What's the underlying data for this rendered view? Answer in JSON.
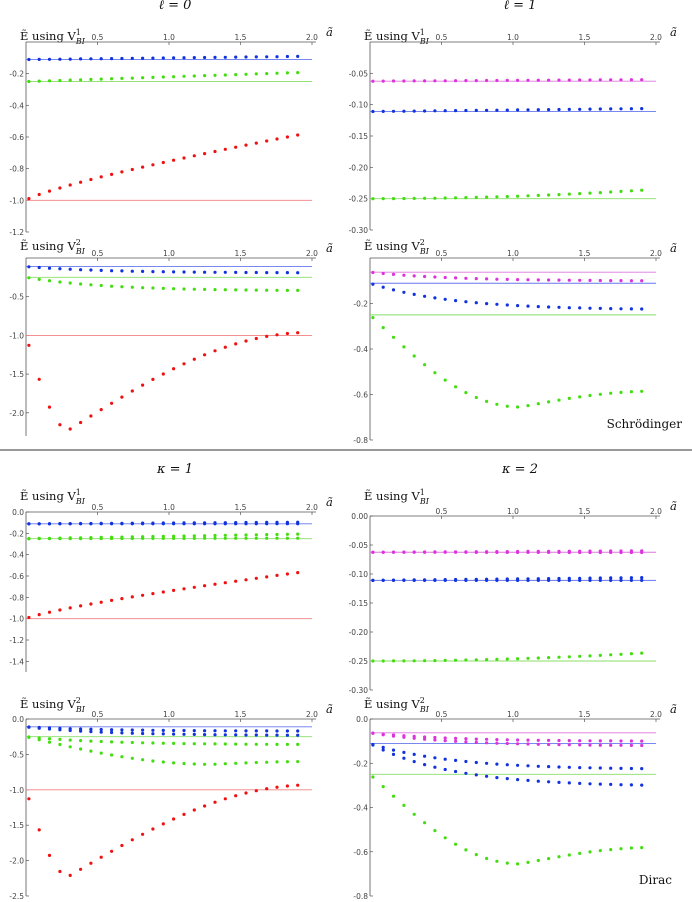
{
  "section_titles": {
    "left_top": "ℓ = 0",
    "right_top": "ℓ = 1",
    "left_bottom": "κ = 1",
    "right_bottom": "κ = 2"
  },
  "tags": {
    "schrodinger": "Schrödinger",
    "dirac": "Dirac"
  },
  "axis_x_label": "ã",
  "colors": {
    "red": "#ee1111",
    "green": "#44dd11",
    "blue": "#1133dd",
    "magenta": "#dd33dd",
    "red_line": "#f08080",
    "green_line": "#88dd66",
    "blue_line": "#6677ee",
    "magenta_line": "#dd77dd"
  },
  "chart_data": [
    {
      "type": "scatter",
      "title": "Ẽ using V¹_BI",
      "xlabel": "ã",
      "ylabel": "",
      "xlim": [
        0,
        2
      ],
      "ylim": [
        -1.2,
        0
      ],
      "xticks": [
        "0.5",
        "1.0",
        "1.5",
        "2.0"
      ],
      "yticks": [
        "-0.2",
        "-0.4",
        "-0.6",
        "-0.8",
        "-1.0",
        "-1.2"
      ],
      "ref_lines": [
        {
          "color": "blue",
          "y": -0.111
        },
        {
          "color": "green",
          "y": -0.25
        },
        {
          "color": "red",
          "y": -1.0
        }
      ],
      "series": [
        {
          "color": "blue",
          "y0": -0.111,
          "y1": -0.09,
          "shape": "lin"
        },
        {
          "color": "green",
          "y0": -0.25,
          "y1": -0.19,
          "shape": "lin"
        },
        {
          "color": "red",
          "y0": -1.0,
          "y1": -0.57,
          "shape": "sqrt"
        }
      ]
    },
    {
      "type": "scatter",
      "title": "Ẽ using V¹_BI",
      "xlabel": "ã",
      "ylabel": "",
      "xlim": [
        0,
        2
      ],
      "ylim": [
        -0.3,
        0
      ],
      "xticks": [
        "0.5",
        "1.0",
        "1.5",
        "2.0"
      ],
      "yticks": [
        "-0.05",
        "-0.10",
        "-0.15",
        "-0.20",
        "-0.25",
        "-0.30"
      ],
      "ref_lines": [
        {
          "color": "magenta",
          "y": -0.0625
        },
        {
          "color": "blue",
          "y": -0.111
        },
        {
          "color": "green",
          "y": -0.25
        }
      ],
      "series": [
        {
          "color": "magenta",
          "y0": -0.0625,
          "y1": -0.06,
          "shape": "lin"
        },
        {
          "color": "blue",
          "y0": -0.111,
          "y1": -0.106,
          "shape": "lin"
        },
        {
          "color": "green",
          "y0": -0.25,
          "y1": -0.235,
          "shape": "quad"
        }
      ]
    },
    {
      "type": "scatter",
      "title": "Ẽ using V²_BI",
      "xlabel": "ã",
      "ylabel": "",
      "xlim": [
        0,
        2
      ],
      "ylim": [
        -2.3,
        0
      ],
      "xticks": [
        "0.5",
        "1.0",
        "1.5",
        "2.0"
      ],
      "yticks": [
        "-0.5",
        "-1.0",
        "-1.5",
        "-2.0"
      ],
      "ref_lines": [
        {
          "color": "blue",
          "y": -0.111
        },
        {
          "color": "green",
          "y": -0.25
        },
        {
          "color": "red",
          "y": -1.0
        }
      ],
      "series": [
        {
          "color": "blue",
          "y0": -0.111,
          "y1": -0.19,
          "shape": "sat"
        },
        {
          "color": "green",
          "y0": -0.25,
          "y1": -0.42,
          "shape": "sat"
        },
        {
          "color": "red",
          "y0": -1.0,
          "y1": -0.96,
          "shape": "dip",
          "ymin": -2.22,
          "xmin": 0.3
        }
      ]
    },
    {
      "type": "scatter",
      "title": "Ẽ using V²_BI",
      "xlabel": "ã",
      "ylabel": "",
      "xlim": [
        0,
        2
      ],
      "ylim": [
        -0.8,
        0
      ],
      "xticks": [
        "0.5",
        "1.0",
        "1.5",
        "2.0"
      ],
      "yticks": [
        "-0.2",
        "-0.4",
        "-0.6",
        "-0.8"
      ],
      "ref_lines": [
        {
          "color": "magenta",
          "y": -0.0625
        },
        {
          "color": "blue",
          "y": -0.111
        },
        {
          "color": "green",
          "y": -0.25
        }
      ],
      "series": [
        {
          "color": "magenta",
          "y0": -0.0625,
          "y1": -0.1,
          "shape": "sat"
        },
        {
          "color": "blue",
          "y0": -0.111,
          "y1": -0.225,
          "shape": "sat"
        },
        {
          "color": "green",
          "y0": -0.25,
          "y1": -0.585,
          "shape": "dip",
          "ymin": -0.655,
          "xmin": 1.05
        }
      ]
    },
    {
      "type": "scatter",
      "title": "Ẽ using V¹_BI",
      "xlabel": "ã",
      "ylabel": "",
      "xlim": [
        0,
        2
      ],
      "ylim": [
        -1.5,
        0
      ],
      "xticks": [
        "0.5",
        "1.0",
        "1.5",
        "2.0"
      ],
      "yticks": [
        "0.0",
        "-0.2",
        "-0.4",
        "-0.6",
        "-0.8",
        "-1.0",
        "-1.2",
        "-1.4"
      ],
      "ref_lines": [
        {
          "color": "blue",
          "y": -0.111
        },
        {
          "color": "green",
          "y": -0.25
        },
        {
          "color": "red",
          "y": -1.0
        }
      ],
      "series": [
        {
          "color": "blue",
          "y0": -0.111,
          "y1": -0.095,
          "shape": "lin"
        },
        {
          "color": "blue",
          "y0": -0.111,
          "y1": -0.11,
          "shape": "lin"
        },
        {
          "color": "green",
          "y0": -0.25,
          "y1": -0.205,
          "shape": "lin"
        },
        {
          "color": "green",
          "y0": -0.25,
          "y1": -0.245,
          "shape": "lin"
        },
        {
          "color": "red",
          "y0": -1.0,
          "y1": -0.55,
          "shape": "sqrt"
        }
      ]
    },
    {
      "type": "scatter",
      "title": "Ẽ using V¹_BI",
      "xlabel": "ã",
      "ylabel": "",
      "xlim": [
        0,
        2
      ],
      "ylim": [
        -0.3,
        0
      ],
      "xticks": [
        "0.5",
        "1.0",
        "1.5",
        "2.0"
      ],
      "yticks": [
        "0.00",
        "-0.05",
        "-0.10",
        "-0.15",
        "-0.20",
        "-0.25",
        "-0.30"
      ],
      "ref_lines": [
        {
          "color": "magenta",
          "y": -0.0625
        },
        {
          "color": "blue",
          "y": -0.111
        },
        {
          "color": "green",
          "y": -0.25
        }
      ],
      "series": [
        {
          "color": "magenta",
          "y0": -0.0625,
          "y1": -0.06,
          "shape": "lin"
        },
        {
          "color": "magenta",
          "y0": -0.0625,
          "y1": -0.063,
          "shape": "lin"
        },
        {
          "color": "blue",
          "y0": -0.111,
          "y1": -0.106,
          "shape": "lin"
        },
        {
          "color": "blue",
          "y0": -0.111,
          "y1": -0.111,
          "shape": "lin"
        },
        {
          "color": "green",
          "y0": -0.25,
          "y1": -0.235,
          "shape": "quad"
        }
      ]
    },
    {
      "type": "scatter",
      "title": "Ẽ using V²_BI",
      "xlabel": "ã",
      "ylabel": "",
      "xlim": [
        0,
        2
      ],
      "ylim": [
        -2.5,
        0
      ],
      "xticks": [
        "0.5",
        "1.0",
        "1.5",
        "2.0"
      ],
      "yticks": [
        "0.0",
        "-0.5",
        "-1.0",
        "-1.5",
        "-2.0",
        "-2.5"
      ],
      "ref_lines": [
        {
          "color": "blue",
          "y": -0.111
        },
        {
          "color": "green",
          "y": -0.25
        },
        {
          "color": "red",
          "y": -1.0
        }
      ],
      "series": [
        {
          "color": "blue",
          "y0": -0.111,
          "y1": -0.17,
          "shape": "sat"
        },
        {
          "color": "blue",
          "y0": -0.111,
          "y1": -0.23,
          "shape": "sat"
        },
        {
          "color": "green",
          "y0": -0.25,
          "y1": -0.36,
          "shape": "sat"
        },
        {
          "color": "green",
          "y0": -0.25,
          "y1": -0.6,
          "shape": "dip",
          "ymin": -0.64,
          "xmin": 1.3
        },
        {
          "color": "red",
          "y0": -1.0,
          "y1": -0.93,
          "shape": "dip",
          "ymin": -2.22,
          "xmin": 0.3
        }
      ]
    },
    {
      "type": "scatter",
      "title": "Ẽ using V²_BI",
      "xlabel": "ã",
      "ylabel": "",
      "xlim": [
        0,
        2
      ],
      "ylim": [
        -0.8,
        0
      ],
      "xticks": [
        "0.5",
        "1.0",
        "1.5",
        "2.0"
      ],
      "yticks": [
        "0.0",
        "-0.2",
        "-0.4",
        "-0.6",
        "-0.8"
      ],
      "ref_lines": [
        {
          "color": "magenta",
          "y": -0.0625
        },
        {
          "color": "blue",
          "y": -0.111
        },
        {
          "color": "green",
          "y": -0.25
        }
      ],
      "series": [
        {
          "color": "magenta",
          "y0": -0.0625,
          "y1": -0.1,
          "shape": "sat"
        },
        {
          "color": "magenta",
          "y0": -0.0625,
          "y1": -0.12,
          "shape": "sat"
        },
        {
          "color": "blue",
          "y0": -0.111,
          "y1": -0.225,
          "shape": "sat"
        },
        {
          "color": "blue",
          "y0": -0.111,
          "y1": -0.3,
          "shape": "sat"
        },
        {
          "color": "green",
          "y0": -0.25,
          "y1": -0.58,
          "shape": "dip",
          "ymin": -0.655,
          "xmin": 1.05
        }
      ]
    }
  ]
}
